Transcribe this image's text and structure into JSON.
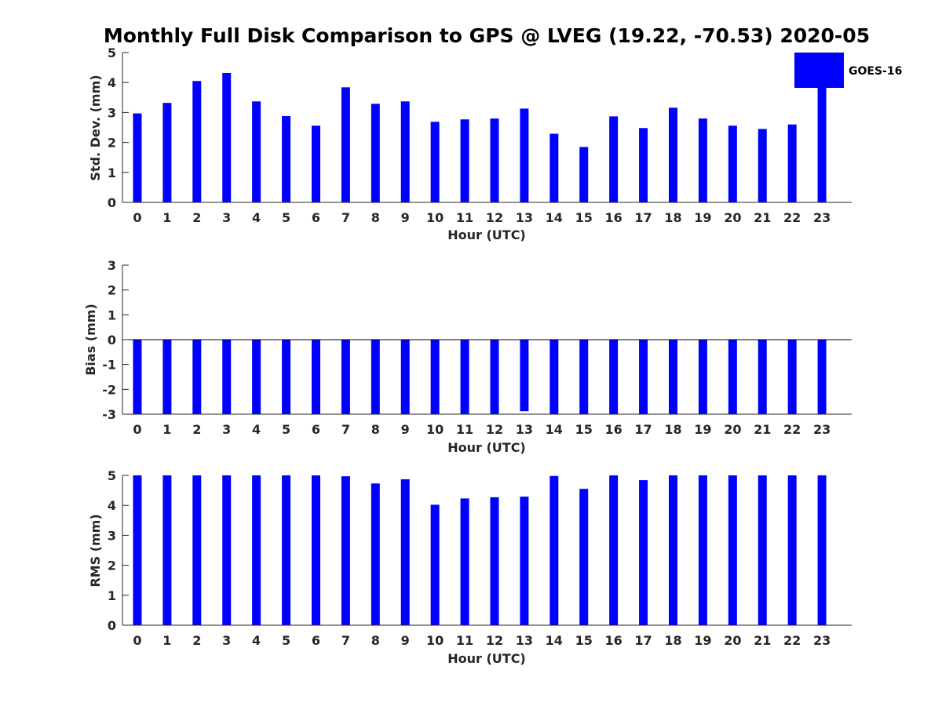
{
  "figure": {
    "title": "Monthly Full Disk Comparison to GPS @ LVEG (19.22, -70.53) 2020-05",
    "bar_color": "#0000ff",
    "legend": {
      "label": "GOES-16",
      "position": "top-right"
    }
  },
  "chart_data": [
    {
      "type": "bar",
      "xlabel": "Hour (UTC)",
      "ylabel": "Std. Dev. (mm)",
      "ylim": [
        0,
        5
      ],
      "yticks": [
        0,
        1,
        2,
        3,
        4,
        5
      ],
      "categories": [
        "0",
        "1",
        "2",
        "3",
        "4",
        "5",
        "6",
        "7",
        "8",
        "9",
        "10",
        "11",
        "12",
        "13",
        "14",
        "15",
        "16",
        "17",
        "18",
        "19",
        "20",
        "21",
        "22",
        "23"
      ],
      "series": [
        {
          "name": "GOES-16",
          "values": [
            2.97,
            3.32,
            4.05,
            4.32,
            3.37,
            2.88,
            2.56,
            3.84,
            3.29,
            3.37,
            2.69,
            2.77,
            2.8,
            3.13,
            2.29,
            1.85,
            2.87,
            2.48,
            3.16,
            2.8,
            2.56,
            2.45,
            2.6,
            3.85
          ]
        }
      ],
      "grid": false
    },
    {
      "type": "bar",
      "xlabel": "Hour (UTC)",
      "ylabel": "Bias (mm)",
      "ylim": [
        -3,
        3
      ],
      "yticks": [
        -3,
        -2,
        -1,
        0,
        1,
        2,
        3
      ],
      "categories": [
        "0",
        "1",
        "2",
        "3",
        "4",
        "5",
        "6",
        "7",
        "8",
        "9",
        "10",
        "11",
        "12",
        "13",
        "14",
        "15",
        "16",
        "17",
        "18",
        "19",
        "20",
        "21",
        "22",
        "23"
      ],
      "series": [
        {
          "name": "GOES-16",
          "values": [
            -3,
            -3,
            -3,
            -3,
            -3,
            -3,
            -3,
            -3,
            -3,
            -3,
            -3,
            -3,
            -3,
            -2.88,
            -3,
            -3,
            -3,
            -3,
            -3,
            -3,
            -3,
            -3,
            -3,
            -3
          ]
        }
      ],
      "grid": false
    },
    {
      "type": "bar",
      "xlabel": "Hour (UTC)",
      "ylabel": "RMS (mm)",
      "ylim": [
        0,
        5
      ],
      "yticks": [
        0,
        1,
        2,
        3,
        4,
        5
      ],
      "categories": [
        "0",
        "1",
        "2",
        "3",
        "4",
        "5",
        "6",
        "7",
        "8",
        "9",
        "10",
        "11",
        "12",
        "13",
        "14",
        "15",
        "16",
        "17",
        "18",
        "19",
        "20",
        "21",
        "22",
        "23"
      ],
      "series": [
        {
          "name": "GOES-16",
          "values": [
            5,
            5,
            5,
            5,
            5,
            5,
            5,
            4.97,
            4.73,
            4.87,
            4.02,
            4.23,
            4.27,
            4.29,
            4.98,
            4.55,
            5,
            4.84,
            5,
            5,
            5,
            5,
            5,
            5
          ]
        }
      ],
      "grid": false
    }
  ]
}
